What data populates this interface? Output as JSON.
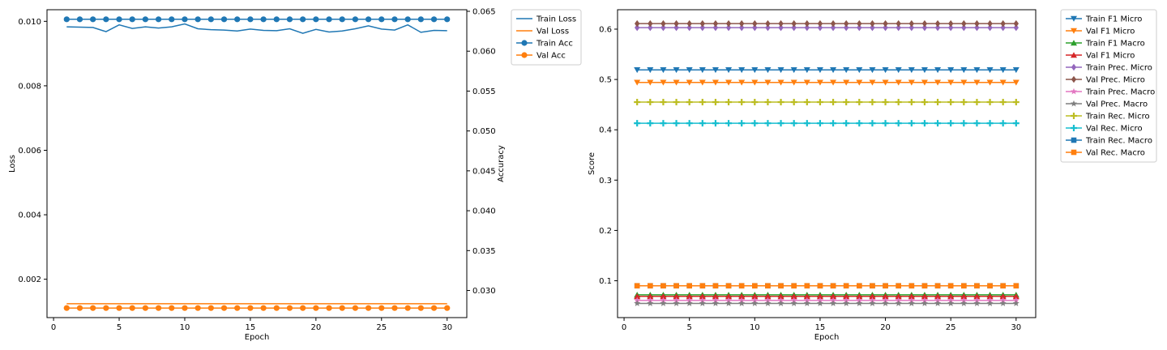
{
  "chart_data": [
    {
      "type": "line",
      "panel": "left",
      "xlabel": "Epoch",
      "ylabel": "Loss",
      "y2label": "Accuracy",
      "x": [
        1,
        2,
        3,
        4,
        5,
        6,
        7,
        8,
        9,
        10,
        11,
        12,
        13,
        14,
        15,
        16,
        17,
        18,
        19,
        20,
        21,
        22,
        23,
        24,
        25,
        26,
        27,
        28,
        29,
        30
      ],
      "xlim": [
        -0.5,
        31.5
      ],
      "ylim": [
        0.00081,
        0.01036
      ],
      "y2lim": [
        0.0266,
        0.0652
      ],
      "xticks": [
        "0",
        "5",
        "10",
        "15",
        "20",
        "25",
        "30"
      ],
      "yticks": [
        "0.002",
        "0.004",
        "0.006",
        "0.008",
        "0.010"
      ],
      "y2ticks": [
        "0.030",
        "0.035",
        "0.040",
        "0.045",
        "0.050",
        "0.055",
        "0.060",
        "0.065"
      ],
      "grid": false,
      "legend_position": "outside-right-top",
      "series": [
        {
          "name": "Train Loss",
          "axis": "left",
          "color": "#1f77b4",
          "marker": "none",
          "values": [
            0.00983,
            0.00982,
            0.00981,
            0.00968,
            0.00989,
            0.00978,
            0.00983,
            0.00979,
            0.00983,
            0.00992,
            0.00977,
            0.00974,
            0.00973,
            0.0097,
            0.00976,
            0.00972,
            0.00971,
            0.00977,
            0.00963,
            0.00975,
            0.00967,
            0.0097,
            0.00977,
            0.00986,
            0.00976,
            0.00973,
            0.00989,
            0.00966,
            0.00972,
            0.00971
          ]
        },
        {
          "name": "Val Loss",
          "axis": "left",
          "color": "#ff7f0e",
          "marker": "none",
          "values": [
            0.00124,
            0.00124,
            0.00124,
            0.00124,
            0.00124,
            0.00124,
            0.00124,
            0.00124,
            0.00124,
            0.00124,
            0.00124,
            0.00124,
            0.00124,
            0.00124,
            0.00124,
            0.00124,
            0.00124,
            0.00124,
            0.00124,
            0.00124,
            0.00124,
            0.00124,
            0.00124,
            0.00124,
            0.00124,
            0.00124,
            0.00124,
            0.00124,
            0.00124,
            0.00124
          ]
        },
        {
          "name": "Train Acc",
          "axis": "right",
          "color": "#1f77b4",
          "marker": "circle",
          "values": [
            0.064,
            0.064,
            0.064,
            0.064,
            0.064,
            0.064,
            0.064,
            0.064,
            0.064,
            0.064,
            0.064,
            0.064,
            0.064,
            0.064,
            0.064,
            0.064,
            0.064,
            0.064,
            0.064,
            0.064,
            0.064,
            0.064,
            0.064,
            0.064,
            0.064,
            0.064,
            0.064,
            0.064,
            0.064,
            0.064
          ]
        },
        {
          "name": "Val Acc",
          "axis": "right",
          "color": "#ff7f0e",
          "marker": "circle",
          "values": [
            0.0278,
            0.0278,
            0.0278,
            0.0278,
            0.0278,
            0.0278,
            0.0278,
            0.0278,
            0.0278,
            0.0278,
            0.0278,
            0.0278,
            0.0278,
            0.0278,
            0.0278,
            0.0278,
            0.0278,
            0.0278,
            0.0278,
            0.0278,
            0.0278,
            0.0278,
            0.0278,
            0.0278,
            0.0278,
            0.0278,
            0.0278,
            0.0278,
            0.0278,
            0.0278
          ]
        }
      ]
    },
    {
      "type": "line",
      "panel": "right",
      "xlabel": "Epoch",
      "ylabel": "Score",
      "x": [
        1,
        2,
        3,
        4,
        5,
        6,
        7,
        8,
        9,
        10,
        11,
        12,
        13,
        14,
        15,
        16,
        17,
        18,
        19,
        20,
        21,
        22,
        23,
        24,
        25,
        26,
        27,
        28,
        29,
        30
      ],
      "xlim": [
        -0.5,
        31.5
      ],
      "ylim": [
        0.0268,
        0.6386
      ],
      "xticks": [
        "0",
        "5",
        "10",
        "15",
        "20",
        "25",
        "30"
      ],
      "yticks": [
        "0.1",
        "0.2",
        "0.3",
        "0.4",
        "0.5",
        "0.6"
      ],
      "grid": false,
      "legend_position": "outside-right-top",
      "series": [
        {
          "name": "Train F1 Micro",
          "color": "#1f77b4",
          "marker": "triangle-down",
          "value": 0.519
        },
        {
          "name": "Val F1 Micro",
          "color": "#ff7f0e",
          "marker": "triangle-down",
          "value": 0.494
        },
        {
          "name": "Train F1 Macro",
          "color": "#2ca02c",
          "marker": "triangle-up",
          "value": 0.072
        },
        {
          "name": "Val F1 Micro",
          "color": "#d62728",
          "marker": "triangle-up",
          "value": 0.069
        },
        {
          "name": "Train Prec. Micro",
          "color": "#9467bd",
          "marker": "diamond",
          "value": 0.603
        },
        {
          "name": "Val Prec. Micro",
          "color": "#8c564b",
          "marker": "diamond",
          "value": 0.611
        },
        {
          "name": "Train Prec. Macro",
          "color": "#e377c2",
          "marker": "star",
          "value": 0.061
        },
        {
          "name": "Val Prec. Macro",
          "color": "#7f7f7f",
          "marker": "star",
          "value": 0.055
        },
        {
          "name": "Train Rec. Micro",
          "color": "#bcbd22",
          "marker": "plus",
          "value": 0.455
        },
        {
          "name": "Val Rec. Micro",
          "color": "#17becf",
          "marker": "plus",
          "value": 0.413
        },
        {
          "name": "Train Rec. Macro",
          "color": "#1f77b4",
          "marker": "square",
          "value": 0.09
        },
        {
          "name": "Val Rec. Macro",
          "color": "#ff7f0e",
          "marker": "square",
          "value": 0.09
        }
      ]
    }
  ]
}
